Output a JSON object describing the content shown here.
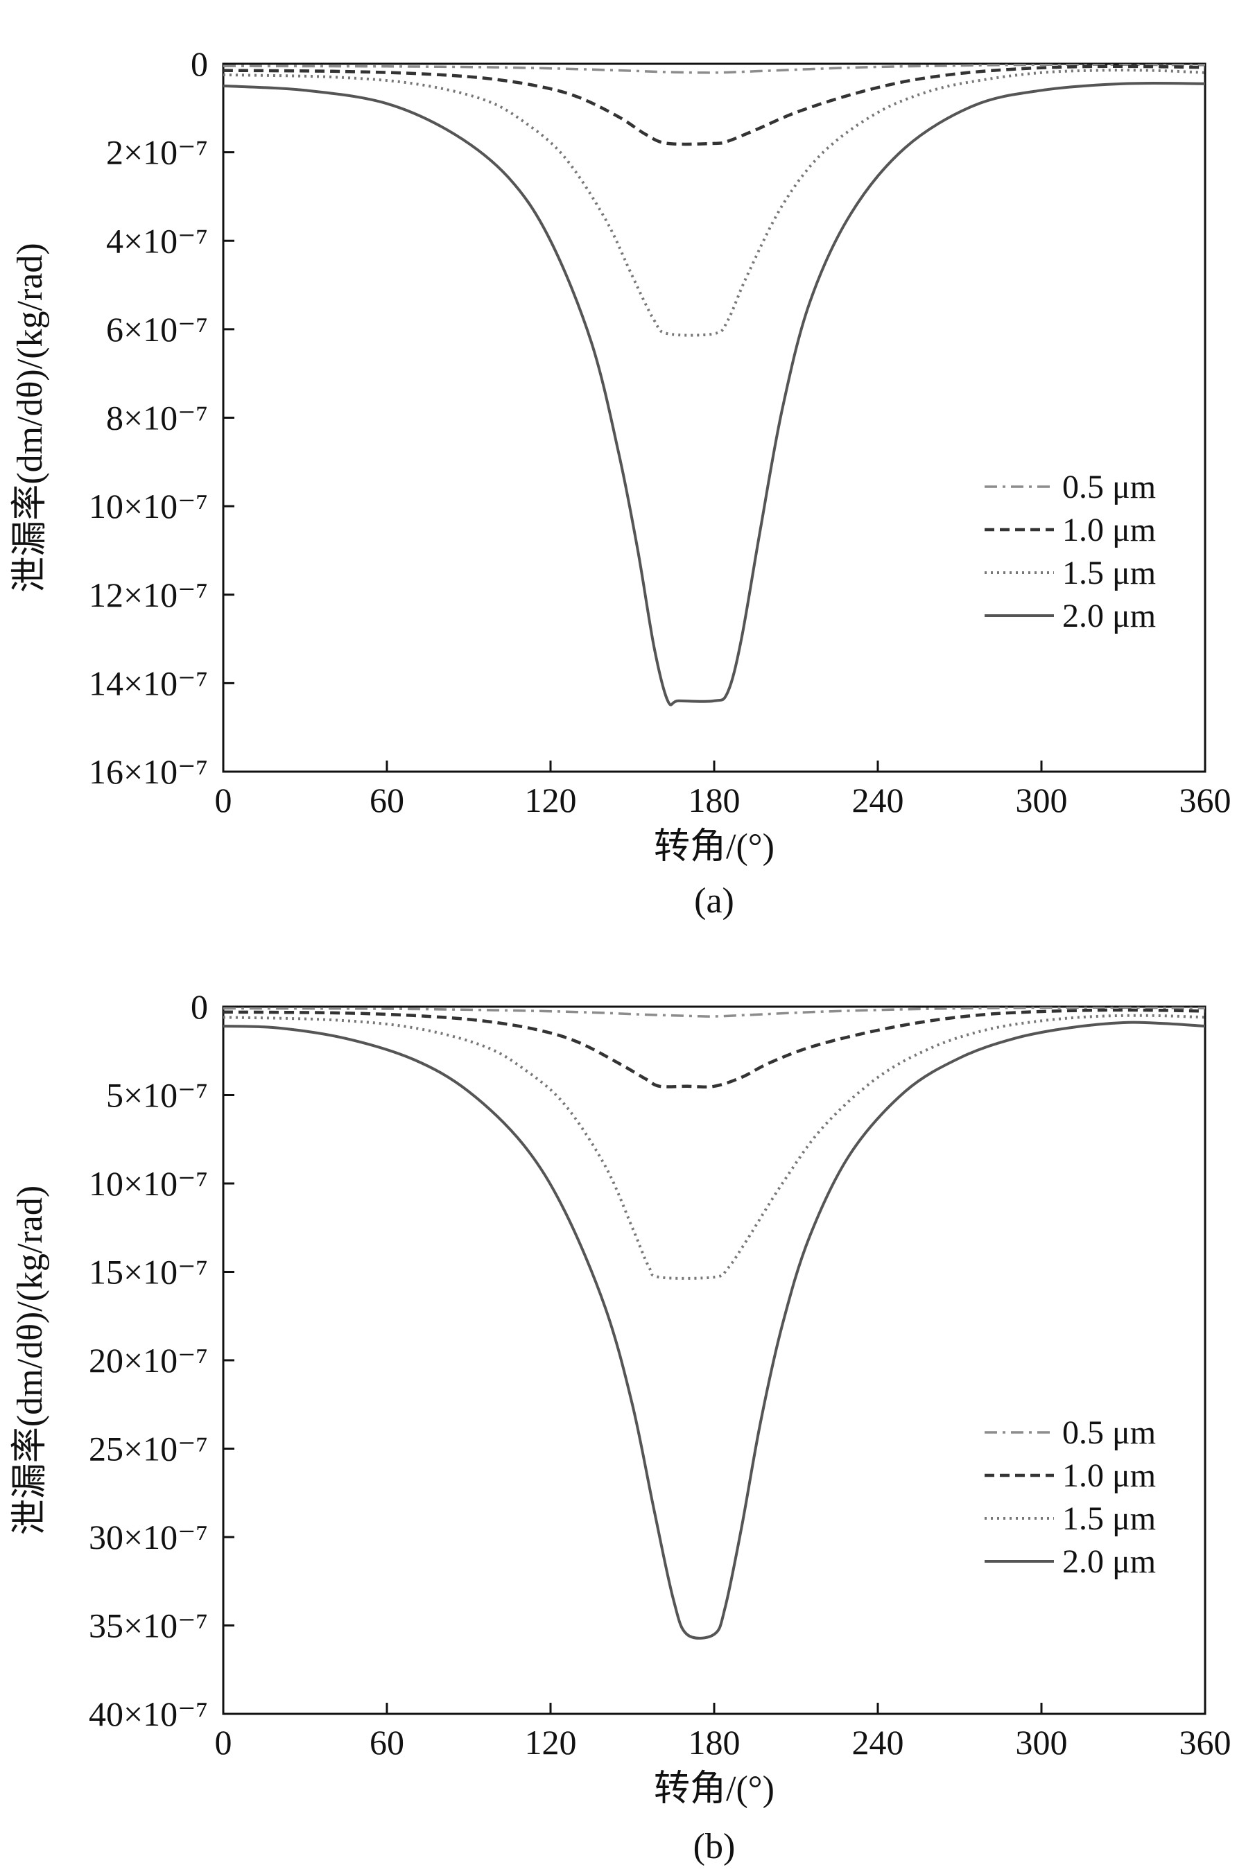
{
  "chart_data": [
    {
      "type": "line",
      "panel_label": "(a)",
      "xlabel": "转角/(°)",
      "ylabel": "泄漏率(dm/dθ)/(kg/rad)",
      "xlim": [
        0,
        360
      ],
      "ylim": [
        0,
        16
      ],
      "y_inverted": true,
      "y_unit_exponent": -7,
      "x_ticks": [
        "0",
        "60",
        "120",
        "180",
        "240",
        "300",
        "360"
      ],
      "y_ticks": [
        "0",
        "2×10⁻⁷",
        "4×10⁻⁷",
        "6×10⁻⁷",
        "8×10⁻⁷",
        "10×10⁻⁷",
        "12×10⁻⁷",
        "14×10⁻⁷",
        "16×10⁻⁷"
      ],
      "legend_position": "right",
      "series": [
        {
          "name": "0.5 μm",
          "style": "dashdot",
          "color": "#8c8c8c",
          "x": [
            0,
            60,
            100,
            130,
            150,
            165,
            180,
            195,
            215,
            240,
            270,
            300,
            330,
            360
          ],
          "y": [
            0.05,
            0.06,
            0.08,
            0.12,
            0.16,
            0.19,
            0.2,
            0.17,
            0.12,
            0.07,
            0.04,
            0.02,
            0.02,
            0.03
          ]
        },
        {
          "name": "1.0 μm",
          "style": "dashed",
          "color": "#333333",
          "x": [
            0,
            40,
            70,
            95,
            115,
            130,
            145,
            155,
            163,
            180,
            185,
            195,
            210,
            230,
            250,
            270,
            290,
            310,
            330,
            360
          ],
          "y": [
            0.15,
            0.17,
            0.22,
            0.32,
            0.5,
            0.75,
            1.2,
            1.6,
            1.8,
            1.8,
            1.75,
            1.5,
            1.1,
            0.7,
            0.4,
            0.22,
            0.12,
            0.07,
            0.06,
            0.08
          ]
        },
        {
          "name": "1.5 μm",
          "style": "dotted",
          "color": "#777777",
          "x": [
            0,
            40,
            70,
            95,
            110,
            125,
            140,
            150,
            158,
            163,
            180,
            185,
            192,
            205,
            220,
            240,
            260,
            280,
            300,
            320,
            340,
            360
          ],
          "y": [
            0.25,
            0.3,
            0.45,
            0.8,
            1.3,
            2.1,
            3.5,
            4.8,
            5.8,
            6.1,
            6.1,
            5.8,
            4.8,
            3.2,
            2.0,
            1.1,
            0.6,
            0.35,
            0.2,
            0.15,
            0.15,
            0.2
          ]
        },
        {
          "name": "2.0 μm",
          "style": "solid",
          "color": "#555555",
          "x": [
            0,
            30,
            60,
            85,
            105,
            120,
            135,
            145,
            152,
            158,
            163,
            167,
            180,
            185,
            190,
            197,
            205,
            215,
            230,
            250,
            275,
            300,
            330,
            360
          ],
          "y": [
            0.5,
            0.6,
            0.9,
            1.6,
            2.6,
            4.0,
            6.3,
            8.8,
            11.0,
            13.2,
            14.4,
            14.4,
            14.4,
            14.2,
            13.0,
            10.5,
            7.8,
            5.4,
            3.4,
            1.9,
            0.95,
            0.6,
            0.45,
            0.45
          ]
        }
      ]
    },
    {
      "type": "line",
      "panel_label": "(b)",
      "xlabel": "转角/(°)",
      "ylabel": "泄漏率(dm/dθ)/(kg/rad)",
      "xlim": [
        0,
        360
      ],
      "ylim": [
        0,
        40
      ],
      "y_inverted": true,
      "y_unit_exponent": -7,
      "x_ticks": [
        "0",
        "60",
        "120",
        "180",
        "240",
        "300",
        "360"
      ],
      "y_ticks": [
        "0",
        "5×10⁻⁷",
        "10×10⁻⁷",
        "15×10⁻⁷",
        "20×10⁻⁷",
        "25×10⁻⁷",
        "30×10⁻⁷",
        "35×10⁻⁷",
        "40×10⁻⁷"
      ],
      "legend_position": "right",
      "series": [
        {
          "name": "0.5 μm",
          "style": "dashdot",
          "color": "#8c8c8c",
          "x": [
            0,
            60,
            100,
            130,
            155,
            170,
            180,
            195,
            220,
            250,
            280,
            320,
            360
          ],
          "y": [
            0.1,
            0.12,
            0.2,
            0.3,
            0.45,
            0.52,
            0.55,
            0.45,
            0.28,
            0.15,
            0.08,
            0.05,
            0.08
          ]
        },
        {
          "name": "1.0 μm",
          "style": "dashed",
          "color": "#333333",
          "x": [
            0,
            40,
            70,
            95,
            115,
            130,
            145,
            155,
            160,
            170,
            180,
            190,
            200,
            215,
            235,
            255,
            275,
            295,
            320,
            340,
            360
          ],
          "y": [
            0.3,
            0.35,
            0.5,
            0.8,
            1.3,
            2.0,
            3.2,
            4.1,
            4.5,
            4.5,
            4.5,
            4.0,
            3.2,
            2.3,
            1.5,
            0.9,
            0.5,
            0.3,
            0.2,
            0.2,
            0.25
          ]
        },
        {
          "name": "1.5 μm",
          "style": "dotted",
          "color": "#777777",
          "x": [
            0,
            40,
            70,
            95,
            110,
            125,
            140,
            150,
            156,
            160,
            180,
            185,
            192,
            205,
            220,
            240,
            260,
            280,
            300,
            320,
            340,
            360
          ],
          "y": [
            0.6,
            0.75,
            1.2,
            2.2,
            3.5,
            5.5,
            9.0,
            12.5,
            14.7,
            15.3,
            15.3,
            14.8,
            13.2,
            10.0,
            6.8,
            4.0,
            2.3,
            1.3,
            0.8,
            0.55,
            0.5,
            0.6
          ]
        },
        {
          "name": "2.0 μm",
          "style": "solid",
          "color": "#555555",
          "x": [
            0,
            20,
            45,
            70,
            90,
            110,
            125,
            140,
            150,
            158,
            165,
            170,
            180,
            184,
            190,
            197,
            205,
            215,
            230,
            250,
            270,
            290,
            310,
            330,
            345,
            360
          ],
          "y": [
            1.1,
            1.2,
            1.8,
            3.0,
            4.8,
            7.8,
            11.5,
            17.0,
            22.5,
            28.5,
            33.5,
            35.5,
            35.5,
            34.0,
            29.5,
            23.5,
            18.0,
            13.0,
            8.3,
            4.8,
            2.9,
            1.8,
            1.2,
            0.9,
            0.95,
            1.1
          ]
        }
      ]
    }
  ]
}
